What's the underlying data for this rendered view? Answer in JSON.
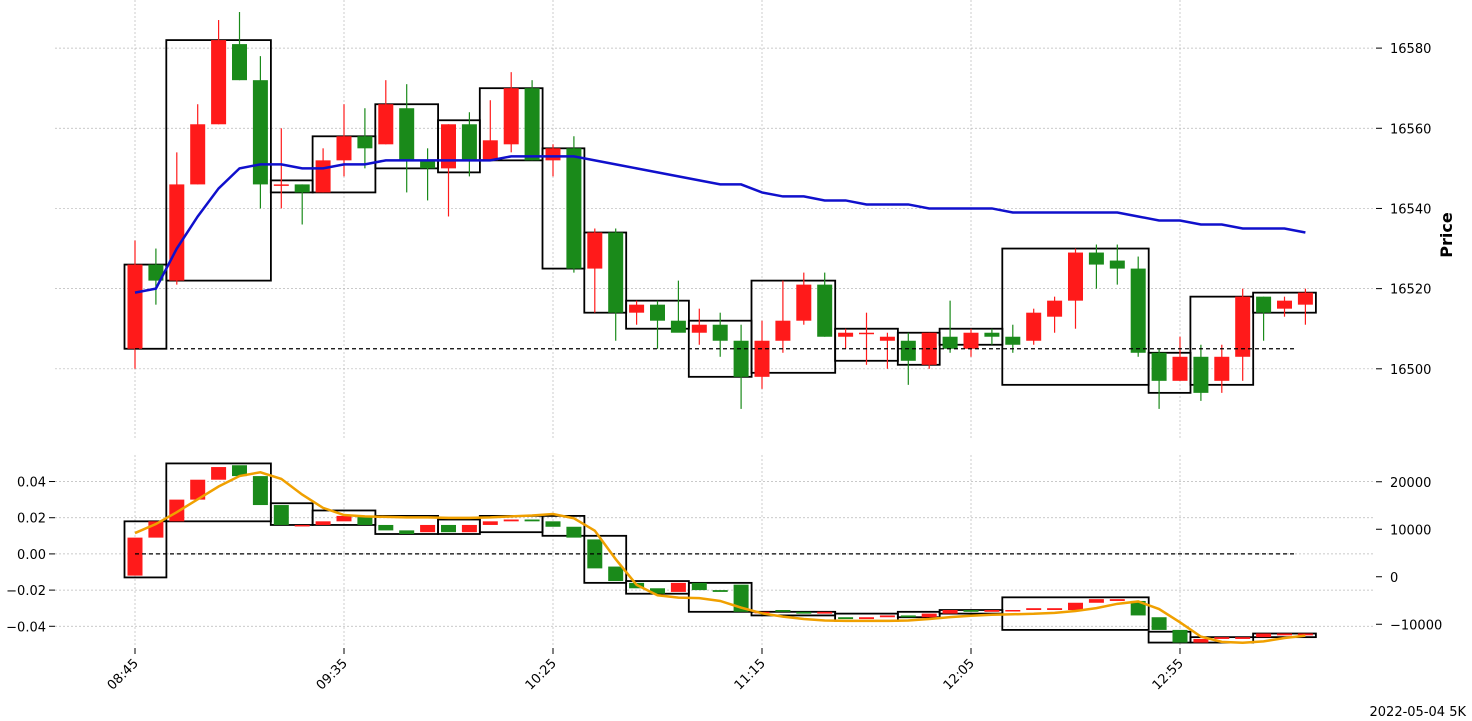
{
  "chart_data": [
    {
      "type": "candlestick",
      "panel": "price",
      "ylabel": "Price",
      "ylim": [
        16478,
        16592
      ],
      "yticks": [
        16500,
        16520,
        16540,
        16560,
        16580
      ],
      "grid": true,
      "colors": {
        "up": "#ff1a1a",
        "down": "#1a8a1a",
        "ma": "#1010cc",
        "box": "#000000",
        "ref": "#000000"
      },
      "candles": [
        [
          16505,
          16532,
          16500,
          16526
        ],
        [
          16526,
          16530,
          16516,
          16522
        ],
        [
          16522,
          16554,
          16521,
          16546
        ],
        [
          16546,
          16566,
          16546,
          16561
        ],
        [
          16561,
          16587,
          16561,
          16582
        ],
        [
          16581,
          16589,
          16572,
          16572
        ],
        [
          16572,
          16578,
          16540,
          16546
        ],
        [
          16546,
          16560,
          16540,
          16546
        ],
        [
          16546,
          16546,
          16536,
          16544
        ],
        [
          16544,
          16555,
          16544,
          16552
        ],
        [
          16552,
          16566,
          16548,
          16558
        ],
        [
          16558,
          16565,
          16550,
          16555
        ],
        [
          16556,
          16572,
          16556,
          16566
        ],
        [
          16565,
          16571,
          16544,
          16552
        ],
        [
          16552,
          16555,
          16542,
          16550
        ],
        [
          16550,
          16561,
          16538,
          16561
        ],
        [
          16561,
          16564,
          16548,
          16552
        ],
        [
          16552,
          16567,
          16552,
          16557
        ],
        [
          16556,
          16574,
          16554,
          16570
        ],
        [
          16570,
          16572,
          16552,
          16552
        ],
        [
          16552,
          16556,
          16548,
          16555
        ],
        [
          16555,
          16558,
          16524,
          16525
        ],
        [
          16525,
          16535,
          16514,
          16534
        ],
        [
          16534,
          16535,
          16507,
          16514
        ],
        [
          16514,
          16517,
          16511,
          16516
        ],
        [
          16516,
          16517,
          16505,
          16512
        ],
        [
          16512,
          16522,
          16510,
          16509
        ],
        [
          16509,
          16515,
          16506,
          16511
        ],
        [
          16511,
          16514,
          16503,
          16507
        ],
        [
          16507,
          16511,
          16490,
          16498
        ],
        [
          16498,
          16512,
          16495,
          16507
        ],
        [
          16507,
          16522,
          16504,
          16512
        ],
        [
          16512,
          16524,
          16511,
          16521
        ],
        [
          16521,
          16524,
          16508,
          16508
        ],
        [
          16508,
          16510,
          16505,
          16509
        ],
        [
          16509,
          16514,
          16501,
          16509
        ],
        [
          16507,
          16509,
          16500,
          16508
        ],
        [
          16507,
          16509,
          16496,
          16502
        ],
        [
          16501,
          16509,
          16500,
          16509
        ],
        [
          16508,
          16517,
          16504,
          16505
        ],
        [
          16505,
          16510,
          16503,
          16509
        ],
        [
          16509,
          16510,
          16506,
          16508
        ],
        [
          16508,
          16511,
          16504,
          16506
        ],
        [
          16507,
          16515,
          16506,
          16514
        ],
        [
          16513,
          16518,
          16509,
          16517
        ],
        [
          16517,
          16530,
          16510,
          16529
        ],
        [
          16529,
          16531,
          16520,
          16526
        ],
        [
          16527,
          16531,
          16521,
          16525
        ],
        [
          16525,
          16528,
          16503,
          16504
        ],
        [
          16504,
          16505,
          16490,
          16497
        ],
        [
          16497,
          16508,
          16497,
          16503
        ],
        [
          16503,
          16506,
          16492,
          16494
        ],
        [
          16497,
          16506,
          16494,
          16503
        ],
        [
          16503,
          16520,
          16497,
          16518
        ],
        [
          16518,
          16518,
          16507,
          16514
        ],
        [
          16515,
          16518,
          16513,
          16517
        ],
        [
          16516,
          16520,
          16511,
          16519
        ]
      ],
      "ma_line": [
        16519,
        16520,
        16530,
        16538,
        16545,
        16550,
        16551,
        16551,
        16550,
        16550,
        16551,
        16551,
        16552,
        16552,
        16552,
        16552,
        16552,
        16552,
        16553,
        16553,
        16553,
        16553,
        16552,
        16551,
        16550,
        16549,
        16548,
        16547,
        16546,
        16546,
        16544,
        16543,
        16543,
        16542,
        16542,
        16541,
        16541,
        16541,
        16540,
        16540,
        16540,
        16540,
        16539,
        16539,
        16539,
        16539,
        16539,
        16539,
        16538,
        16537,
        16537,
        16536,
        16536,
        16535,
        16535,
        16535,
        16534
      ],
      "reference_line": 16505,
      "boxes": [
        [
          0,
          1,
          16505,
          16526
        ],
        [
          2,
          6,
          16522,
          16582
        ],
        [
          7,
          8,
          16544,
          16547
        ],
        [
          9,
          11,
          16544,
          16558
        ],
        [
          12,
          14,
          16550,
          16566
        ],
        [
          15,
          16,
          16549,
          16562
        ],
        [
          17,
          19,
          16552,
          16570
        ],
        [
          20,
          21,
          16525,
          16555
        ],
        [
          22,
          23,
          16514,
          16534
        ],
        [
          24,
          26,
          16510,
          16517
        ],
        [
          27,
          29,
          16498,
          16512
        ],
        [
          30,
          33,
          16499,
          16522
        ],
        [
          34,
          36,
          16502,
          16510
        ],
        [
          37,
          38,
          16501,
          16509
        ],
        [
          39,
          41,
          16506,
          16510
        ],
        [
          42,
          48,
          16496,
          16530
        ],
        [
          49,
          50,
          16494,
          16504
        ],
        [
          51,
          53,
          16496,
          16518
        ],
        [
          54,
          56,
          16514,
          16519
        ]
      ]
    },
    {
      "type": "candlestick",
      "panel": "indicator",
      "left_axis": {
        "ylim": [
          -0.052,
          0.053
        ],
        "yticks": [
          -0.04,
          -0.02,
          0.0,
          0.02,
          0.04
        ],
        "tick_labels": [
          "−0.04",
          "−0.02",
          "0.00",
          "0.02",
          "0.04"
        ]
      },
      "right_axis": {
        "ylim": [
          -15000,
          25000
        ],
        "yticks": [
          -10000,
          0,
          10000,
          20000
        ],
        "tick_labels": [
          "−10000",
          "0",
          "10000",
          "20000"
        ]
      },
      "grid": true,
      "colors": {
        "up": "#ff1a1a",
        "down": "#1a8a1a",
        "line": "#f0a000",
        "box": "#000000",
        "ref": "#000000"
      },
      "candles": [
        [
          -0.012,
          0.009
        ],
        [
          0.009,
          0.018
        ],
        [
          0.018,
          0.03
        ],
        [
          0.03,
          0.041
        ],
        [
          0.041,
          0.048
        ],
        [
          0.049,
          0.043
        ],
        [
          0.043,
          0.027
        ],
        [
          0.027,
          0.016
        ],
        [
          0.016,
          0.016
        ],
        [
          0.016,
          0.018
        ],
        [
          0.018,
          0.021
        ],
        [
          0.021,
          0.016
        ],
        [
          0.016,
          0.013
        ],
        [
          0.013,
          0.011
        ],
        [
          0.012,
          0.016
        ],
        [
          0.016,
          0.012
        ],
        [
          0.012,
          0.016
        ],
        [
          0.016,
          0.018
        ],
        [
          0.018,
          0.019
        ],
        [
          0.019,
          0.018
        ],
        [
          0.018,
          0.015
        ],
        [
          0.015,
          0.009
        ],
        [
          0.008,
          -0.008
        ],
        [
          -0.007,
          -0.015
        ],
        [
          -0.016,
          -0.019
        ],
        [
          -0.019,
          -0.022
        ],
        [
          -0.021,
          -0.016
        ],
        [
          -0.016,
          -0.02
        ],
        [
          -0.02,
          -0.021
        ],
        [
          -0.017,
          -0.032
        ],
        [
          -0.032,
          -0.032
        ],
        [
          -0.031,
          -0.032
        ],
        [
          -0.032,
          -0.033
        ],
        [
          -0.033,
          -0.032
        ],
        [
          -0.035,
          -0.036
        ],
        [
          -0.036,
          -0.035
        ],
        [
          -0.035,
          -0.034
        ],
        [
          -0.034,
          -0.035
        ],
        [
          -0.035,
          -0.033
        ],
        [
          -0.033,
          -0.031
        ],
        [
          -0.031,
          -0.032
        ],
        [
          -0.032,
          -0.031
        ],
        [
          -0.031,
          -0.031
        ],
        [
          -0.031,
          -0.03
        ],
        [
          -0.031,
          -0.03
        ],
        [
          -0.031,
          -0.027
        ],
        [
          -0.027,
          -0.025
        ],
        [
          -0.026,
          -0.025
        ],
        [
          -0.026,
          -0.034
        ],
        [
          -0.035,
          -0.042
        ],
        [
          -0.042,
          -0.049
        ],
        [
          -0.049,
          -0.047
        ],
        [
          -0.047,
          -0.046
        ],
        [
          -0.047,
          -0.046
        ],
        [
          -0.046,
          -0.044
        ],
        [
          -0.045,
          -0.044
        ],
        [
          -0.045,
          -0.044
        ]
      ],
      "line_right_axis": [
        9200,
        11100,
        13600,
        16300,
        19000,
        21200,
        22000,
        20600,
        17300,
        14500,
        13000,
        12700,
        12600,
        12500,
        12500,
        12400,
        12400,
        12500,
        12700,
        12900,
        13200,
        12300,
        9700,
        3700,
        -1700,
        -3900,
        -4400,
        -4500,
        -5100,
        -6500,
        -7700,
        -8400,
        -8900,
        -9200,
        -9300,
        -9300,
        -9300,
        -9200,
        -8900,
        -8500,
        -8200,
        -8000,
        -7900,
        -7800,
        -7600,
        -7200,
        -6600,
        -5700,
        -5200,
        -6800,
        -9600,
        -12600,
        -13700,
        -13900,
        -13600,
        -12900,
        -12400
      ],
      "reference_line": 0.0,
      "boxes": [
        [
          0,
          1,
          -0.013,
          0.018
        ],
        [
          2,
          6,
          0.018,
          0.05
        ],
        [
          7,
          8,
          0.016,
          0.028
        ],
        [
          9,
          11,
          0.016,
          0.024
        ],
        [
          12,
          14,
          0.011,
          0.021
        ],
        [
          15,
          16,
          0.011,
          0.019
        ],
        [
          17,
          19,
          0.012,
          0.021
        ],
        [
          20,
          21,
          0.01,
          0.021
        ],
        [
          22,
          23,
          -0.016,
          0.01
        ],
        [
          24,
          26,
          -0.022,
          -0.015
        ],
        [
          27,
          29,
          -0.032,
          -0.016
        ],
        [
          30,
          33,
          -0.034,
          -0.032
        ],
        [
          34,
          36,
          -0.037,
          -0.033
        ],
        [
          37,
          38,
          -0.035,
          -0.032
        ],
        [
          39,
          41,
          -0.033,
          -0.031
        ],
        [
          42,
          48,
          -0.042,
          -0.024
        ],
        [
          49,
          50,
          -0.049,
          -0.043
        ],
        [
          51,
          53,
          -0.049,
          -0.046
        ],
        [
          54,
          56,
          -0.046,
          -0.044
        ]
      ]
    }
  ],
  "x_axis": {
    "tick_indices": [
      0,
      10,
      20,
      30,
      40,
      50
    ],
    "tick_labels": [
      "08:45",
      "09:35",
      "10:25",
      "11:15",
      "12:05",
      "12:55"
    ]
  },
  "footer": "2022-05-04 5K"
}
